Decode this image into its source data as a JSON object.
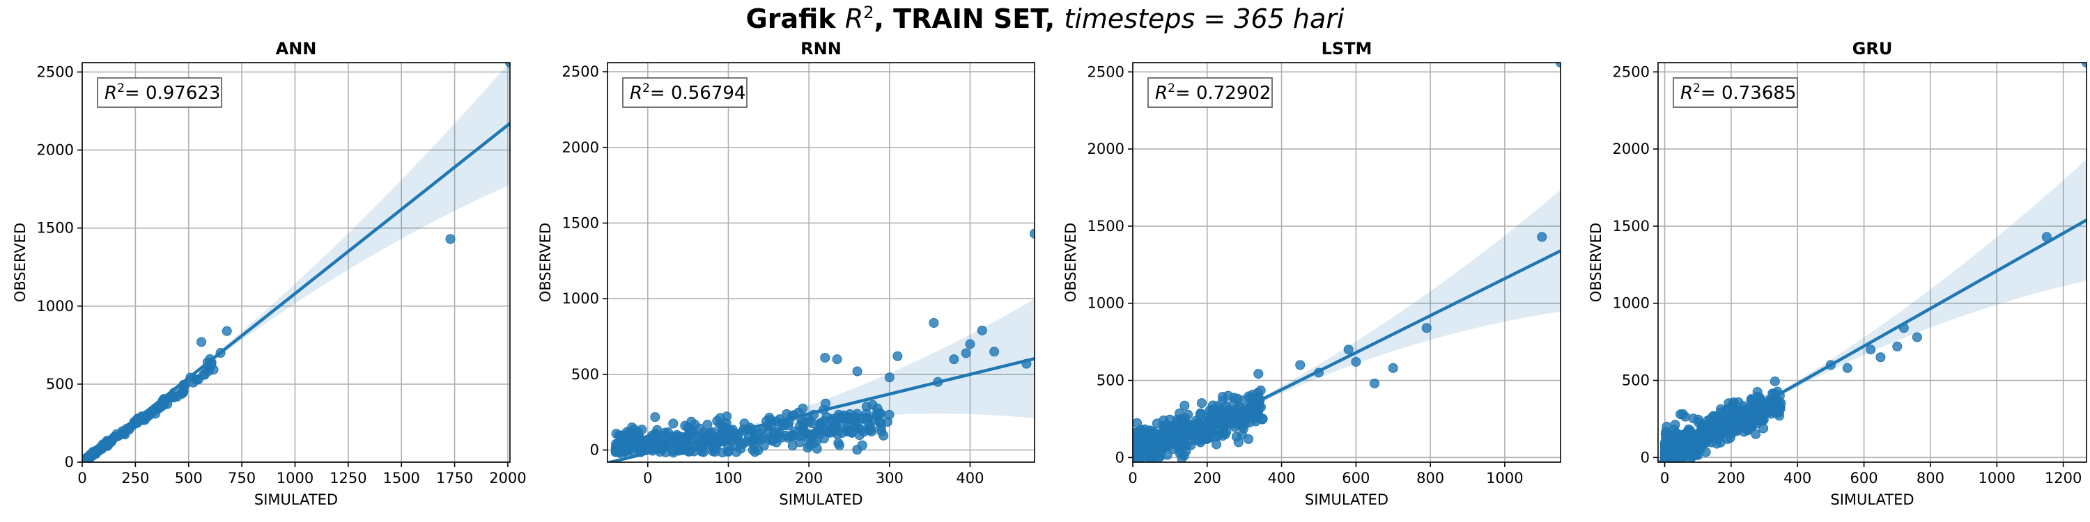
{
  "title": {
    "prefix": "Grafik ",
    "r_var": "R",
    "r_sup": "2",
    "middle": ", TRAIN SET, ",
    "expr": "timesteps = 365 hari"
  },
  "chart_data": [
    {
      "type": "scatter",
      "title": "ANN",
      "xlabel": "SIMULATED",
      "ylabel": "OBSERVED",
      "xlim": [
        0,
        2010
      ],
      "ylim": [
        0,
        2560
      ],
      "xticks": [
        0,
        250,
        500,
        750,
        1000,
        1250,
        1500,
        1750,
        2000
      ],
      "yticks": [
        0,
        500,
        1000,
        1500,
        2000,
        2500
      ],
      "r2_label": "R",
      "r2_value": "= 0.97623",
      "fit": {
        "slope": 1.08,
        "intercept": 0
      },
      "outliers": [
        [
          1730,
          1430
        ],
        [
          680,
          840
        ],
        [
          650,
          700
        ],
        [
          560,
          770
        ],
        [
          600,
          660
        ],
        [
          2010,
          2560
        ]
      ],
      "cluster": {
        "type": "line",
        "xmax": 620,
        "slope": 1.0,
        "spread": 25,
        "count": 160
      },
      "color": "#1f77b4"
    },
    {
      "type": "scatter",
      "title": "RNN",
      "xlabel": "SIMULATED",
      "ylabel": "OBSERVED",
      "xlim": [
        -50,
        480
      ],
      "ylim": [
        -80,
        2560
      ],
      "xticks": [
        0,
        100,
        200,
        300,
        400
      ],
      "yticks": [
        0,
        500,
        1000,
        1500,
        2000,
        2500
      ],
      "r2_label": "R",
      "r2_value": "= 0.56794",
      "fit": {
        "slope": 1.3,
        "intercept": -20
      },
      "outliers": [
        [
          480,
          1430
        ],
        [
          355,
          840
        ],
        [
          400,
          700
        ],
        [
          395,
          640
        ],
        [
          415,
          790
        ],
        [
          430,
          650
        ],
        [
          470,
          570
        ],
        [
          310,
          620
        ],
        [
          380,
          600
        ],
        [
          235,
          600
        ],
        [
          220,
          610
        ],
        [
          260,
          520
        ],
        [
          300,
          480
        ],
        [
          360,
          450
        ]
      ],
      "cluster": {
        "type": "blob",
        "xmin": -40,
        "xmax": 300,
        "ybase": 40,
        "slope": 0.5,
        "spread": 110,
        "count": 420
      },
      "color": "#1f77b4"
    },
    {
      "type": "scatter",
      "title": "LSTM",
      "xlabel": "SIMULATED",
      "ylabel": "OBSERVED",
      "xlim": [
        0,
        1150
      ],
      "ylim": [
        -30,
        2560
      ],
      "xticks": [
        0,
        200,
        400,
        600,
        800,
        1000
      ],
      "yticks": [
        0,
        500,
        1000,
        1500,
        2000,
        2500
      ],
      "r2_label": "R",
      "r2_value": "= 0.72902",
      "fit": {
        "slope": 1.2,
        "intercept": -40
      },
      "outliers": [
        [
          1100,
          1430
        ],
        [
          790,
          840
        ],
        [
          700,
          580
        ],
        [
          650,
          480
        ],
        [
          600,
          620
        ],
        [
          580,
          700
        ],
        [
          500,
          550
        ],
        [
          450,
          600
        ],
        [
          1150,
          2560
        ]
      ],
      "cluster": {
        "type": "blob",
        "xmin": 5,
        "xmax": 350,
        "ybase": 50,
        "slope": 0.8,
        "spread": 120,
        "count": 420
      },
      "color": "#1f77b4"
    },
    {
      "type": "scatter",
      "title": "GRU",
      "xlabel": "SIMULATED",
      "ylabel": "OBSERVED",
      "xlim": [
        -20,
        1270
      ],
      "ylim": [
        -30,
        2560
      ],
      "xticks": [
        0,
        200,
        400,
        600,
        800,
        1000,
        1200
      ],
      "yticks": [
        0,
        500,
        1000,
        1500,
        2000,
        2500
      ],
      "r2_label": "R",
      "r2_value": "= 0.73685",
      "fit": {
        "slope": 1.22,
        "intercept": -10
      },
      "outliers": [
        [
          1150,
          1430
        ],
        [
          720,
          840
        ],
        [
          700,
          720
        ],
        [
          760,
          780
        ],
        [
          620,
          700
        ],
        [
          650,
          650
        ],
        [
          550,
          580
        ],
        [
          500,
          600
        ],
        [
          1270,
          2560
        ]
      ],
      "cluster": {
        "type": "blob",
        "xmin": 0,
        "xmax": 350,
        "ybase": 40,
        "slope": 0.9,
        "spread": 120,
        "count": 420
      },
      "color": "#1f77b4"
    }
  ]
}
